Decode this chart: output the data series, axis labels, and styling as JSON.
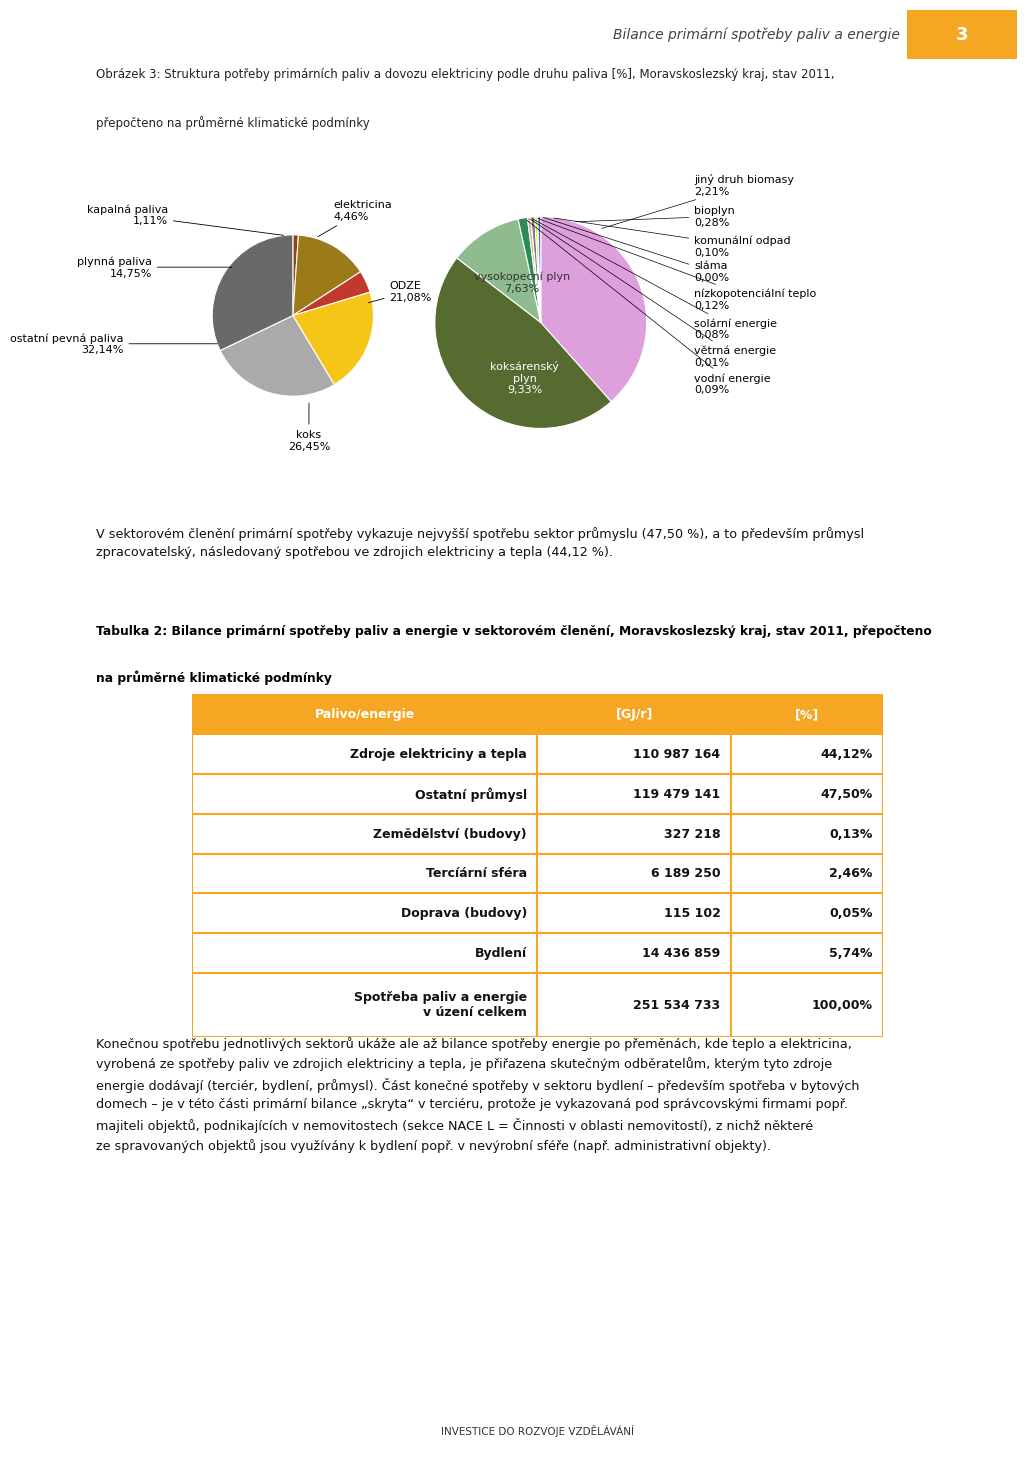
{
  "page_header": "Bilance primární spotřeby paliv a energie",
  "page_number": "3",
  "header_bg_color": "#F5A623",
  "pie_left": {
    "slices": [
      {
        "label": "kapalná paliva\n1,11%",
        "value": 1.11,
        "color": "#8B4513"
      },
      {
        "label": "plynná paliva\n14,75%",
        "value": 14.75,
        "color": "#9B7A1A"
      },
      {
        "label": "elektricina\n4,46%",
        "value": 4.46,
        "color": "#C0392B"
      },
      {
        "label": "ODZE\n21,08%",
        "value": 21.08,
        "color": "#F5C518"
      },
      {
        "label": "koks\n26,45%",
        "value": 26.45,
        "color": "#AAAAAA"
      },
      {
        "label": "ostatní pevná paliva\n32,14%",
        "value": 32.14,
        "color": "#696969"
      }
    ]
  },
  "pie_right": {
    "slices": [
      {
        "label": "vysokopecní plyn\n7,63%",
        "value": 7.63,
        "color": "#DDA0DD"
      },
      {
        "label": "koksárenský plyn\n9,33%",
        "value": 9.33,
        "color": "#556B2F"
      },
      {
        "label": "jiný druh biomasy\n2,21%",
        "value": 2.21,
        "color": "#8FBC8F"
      },
      {
        "label": "bioplyn\n0,28%",
        "value": 0.28,
        "color": "#2E8B57"
      },
      {
        "label": "komunální odpad\n0,10%",
        "value": 0.1,
        "color": "#D2B48C"
      },
      {
        "label": "sláma\n0,00%",
        "value": 0.001,
        "color": "#DAA520"
      },
      {
        "label": "nízkopotenciální teplo\n0,12%",
        "value": 0.12,
        "color": "#708090"
      },
      {
        "label": "solární energie\n0,08%",
        "value": 0.08,
        "color": "#FFD700"
      },
      {
        "label": "větrná energie\n0,01%",
        "value": 0.01,
        "color": "#87CEEB"
      },
      {
        "label": "vodní energie\n0,09%",
        "value": 0.09,
        "color": "#4169E1"
      }
    ]
  },
  "table_header": [
    "Palivo/energie",
    "[GJ/r]",
    "[%]"
  ],
  "table_header_bg": "#F5A623",
  "table_border_color": "#F5A623",
  "table_rows": [
    [
      "Zdroje elektriciny a tepla",
      "110 987 164",
      "44,12%"
    ],
    [
      "Ostatní průmysl",
      "119 479 141",
      "47,50%"
    ],
    [
      "Zemědělství (budovy)",
      "327 218",
      "0,13%"
    ],
    [
      "Tercíární sféra",
      "6 189 250",
      "2,46%"
    ],
    [
      "Doprava (budovy)",
      "115 102",
      "0,05%"
    ],
    [
      "Bydlení",
      "14 436 859",
      "5,74%"
    ],
    [
      "Spotřeba paliv a energie\nv úzení celkem",
      "251 534 733",
      "100,00%"
    ]
  ]
}
